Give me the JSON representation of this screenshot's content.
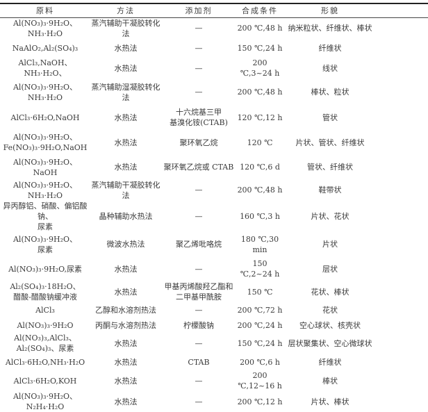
{
  "table": {
    "headers": [
      "原料",
      "方法",
      "添加剂",
      "合成条件",
      "形貌"
    ],
    "rows": [
      [
        "Al(NO₃)₃·9H₂O、\nNH₃·H₂O",
        "蒸汽辅助干凝胶转化法",
        "—",
        "200 ℃,48 h",
        "纳米粒状、纤维状、棒状"
      ],
      [
        "NaAlO₂,Al₂(SO₄)₃",
        "水热法",
        "—",
        "150 ℃,24 h",
        "纤维状"
      ],
      [
        "AlCl₃,NaOH、\nNH₃·H₂O、",
        "水热法",
        "—",
        "200 ℃,3~24 h",
        "线状"
      ],
      [
        "Al(NO₃)₃·9H₂O、\nNH₃·H₂O",
        "蒸汽辅助湿凝胶转化法",
        "—",
        "200 ℃,48 h",
        "棒状、粒状"
      ],
      [
        "AlCl₃·6H₂O,NaOH",
        "水热法",
        "十六烷基三甲\n基溴化铵(CTAB)",
        "120 ℃,12 h",
        "管状"
      ],
      [
        "Al(NO₃)₃·9H₂O、\nFe(NO₃)₃·9H₂O,NaOH",
        "水热法",
        "聚环氧乙烷",
        "120 ℃",
        "片状、管状、纤维状"
      ],
      [
        "Al(NO₃)₃·9H₂O、\nNaOH",
        "水热法",
        "聚环氧乙烷或 CTAB",
        "120 ℃,6 d",
        "管状、纤维状"
      ],
      [
        "Al(NO₃)₃·9H₂O、\nNH₃·H₂O",
        "蒸汽辅助干凝胶转化法",
        "—",
        "200 ℃,48 h",
        "鞋带状"
      ],
      [
        "异丙醇铝、硝酸、偏铝酸钠、\n尿素",
        "晶种辅助水热法",
        "—",
        "160 ℃,3 h",
        "片状、花状"
      ],
      [
        "Al(NO₃)₃·9H₂O、\n尿素",
        "微波水热法",
        "聚乙烯吡咯烷",
        "180 ℃,30 min",
        "片状"
      ],
      [
        "Al(NO₃)₃·9H₂O,尿素",
        "水热法",
        "—",
        "150 ℃,2~24 h",
        "层状"
      ],
      [
        "Al₂(SO₄)₃·18H₂O、\n醋酸-醋酸钠缓冲液",
        "水热法",
        "甲基丙烯酸羟乙酯和\n二甲基甲酰胺",
        "150 ℃",
        "花状、棒状"
      ],
      [
        "AlCl₃",
        "乙醇和水溶剂热法",
        "—",
        "200 ℃,72 h",
        "花状"
      ],
      [
        "Al(NO₃)₃·9H₂O",
        "丙酮与水溶剂热法",
        "柠檬酸钠",
        "200 ℃,24 h",
        "空心球状、核壳状"
      ],
      [
        "Al(NO₃)₃,AlCl₃、\nAl₂(SO₄)₃、尿素",
        "水热法",
        "—",
        "150 ℃,24 h",
        "层状聚集状、空心微球状"
      ],
      [
        "AlCl₃·6H₂O,NH₃·H₂O",
        "水热法",
        "CTAB",
        "200 ℃,6 h",
        "纤维状"
      ],
      [
        "AlCl₃·6H₂O,KOH",
        "水热法",
        "—",
        "200 ℃,12~16 h",
        "棒状"
      ],
      [
        "Al(NO₃)₃·9H₂O、\nN₂H₄·H₂O",
        "水热法",
        "—",
        "200 ℃,12 h",
        "片状、棒状"
      ]
    ]
  }
}
